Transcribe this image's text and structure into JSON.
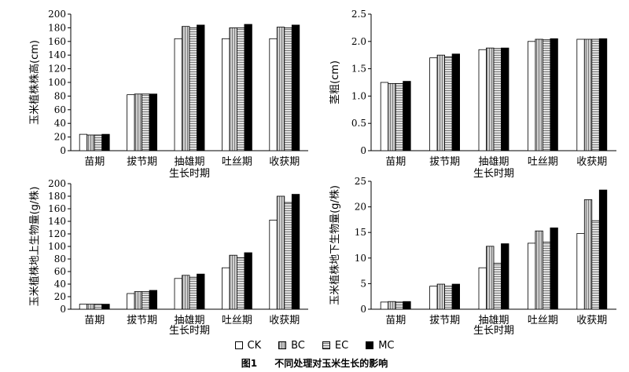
{
  "legend": [
    {
      "name": "CK",
      "fill": "#ffffff",
      "pattern": "none"
    },
    {
      "name": "BC",
      "fill": "#c8c8c8",
      "pattern": "vstripe"
    },
    {
      "name": "EC",
      "fill": "#d8d8d8",
      "pattern": "hstripe"
    },
    {
      "name": "MC",
      "fill": "#000000",
      "pattern": "none"
    }
  ],
  "caption": {
    "number": "图1",
    "text": "不同处理对玉米生长的影响"
  },
  "chart_data": [
    {
      "type": "bar",
      "ylabel": "玉米植株株高(cm)",
      "xlabel": "生长时期",
      "categories": [
        "苗期",
        "拔节期",
        "抽雄期",
        "吐丝期",
        "收获期"
      ],
      "ylim": [
        0,
        200
      ],
      "yticks": [
        "0",
        "20",
        "40",
        "60",
        "80",
        "100",
        "120",
        "140",
        "160",
        "180",
        "200"
      ],
      "series": [
        {
          "name": "CK",
          "values": [
            24,
            82,
            164,
            164,
            164
          ]
        },
        {
          "name": "BC",
          "values": [
            23,
            83,
            182,
            180,
            181
          ]
        },
        {
          "name": "EC",
          "values": [
            23,
            83,
            180,
            180,
            180
          ]
        },
        {
          "name": "MC",
          "values": [
            24,
            83,
            184,
            185,
            184
          ]
        }
      ]
    },
    {
      "type": "bar",
      "ylabel": "茎粗(cm)",
      "xlabel": "生长时期",
      "categories": [
        "苗期",
        "拔节期",
        "抽雄期",
        "吐丝期",
        "收获期"
      ],
      "ylim": [
        0,
        2.5
      ],
      "yticks": [
        "0",
        "0.5",
        "1.0",
        "1.5",
        "2.0",
        "2.5"
      ],
      "series": [
        {
          "name": "CK",
          "values": [
            1.25,
            1.7,
            1.85,
            2.0,
            2.04
          ]
        },
        {
          "name": "BC",
          "values": [
            1.23,
            1.75,
            1.88,
            2.04,
            2.04
          ]
        },
        {
          "name": "EC",
          "values": [
            1.23,
            1.72,
            1.87,
            2.03,
            2.04
          ]
        },
        {
          "name": "MC",
          "values": [
            1.27,
            1.77,
            1.88,
            2.05,
            2.05
          ]
        }
      ]
    },
    {
      "type": "bar",
      "ylabel": "玉米植株地上生物量(g/株)",
      "xlabel": "生长时期",
      "categories": [
        "苗期",
        "拔节期",
        "抽雄期",
        "吐丝期",
        "收获期"
      ],
      "ylim": [
        0,
        200
      ],
      "yticks": [
        "0",
        "20",
        "40",
        "60",
        "80",
        "100",
        "120",
        "140",
        "160",
        "180",
        "200"
      ],
      "series": [
        {
          "name": "CK",
          "values": [
            8,
            25,
            49,
            66,
            142
          ]
        },
        {
          "name": "BC",
          "values": [
            8,
            28,
            54,
            86,
            180
          ]
        },
        {
          "name": "EC",
          "values": [
            8,
            28,
            51,
            82,
            170
          ]
        },
        {
          "name": "MC",
          "values": [
            8,
            30,
            56,
            90,
            183
          ]
        }
      ]
    },
    {
      "type": "bar",
      "ylabel": "玉米植株地下生物量(g/株)",
      "xlabel": "生长时期",
      "categories": [
        "苗期",
        "拔节期",
        "抽雄期",
        "吐丝期",
        "收获期"
      ],
      "ylim": [
        0,
        25
      ],
      "yticks": [
        "0",
        "5",
        "10",
        "15",
        "20",
        "25"
      ],
      "series": [
        {
          "name": "CK",
          "values": [
            1.4,
            4.5,
            8.1,
            12.9,
            14.8
          ]
        },
        {
          "name": "BC",
          "values": [
            1.5,
            4.9,
            12.3,
            15.3,
            21.4
          ]
        },
        {
          "name": "EC",
          "values": [
            1.4,
            4.5,
            9.0,
            13.1,
            17.3
          ]
        },
        {
          "name": "MC",
          "values": [
            1.5,
            4.9,
            12.8,
            15.9,
            23.3
          ]
        }
      ]
    }
  ]
}
